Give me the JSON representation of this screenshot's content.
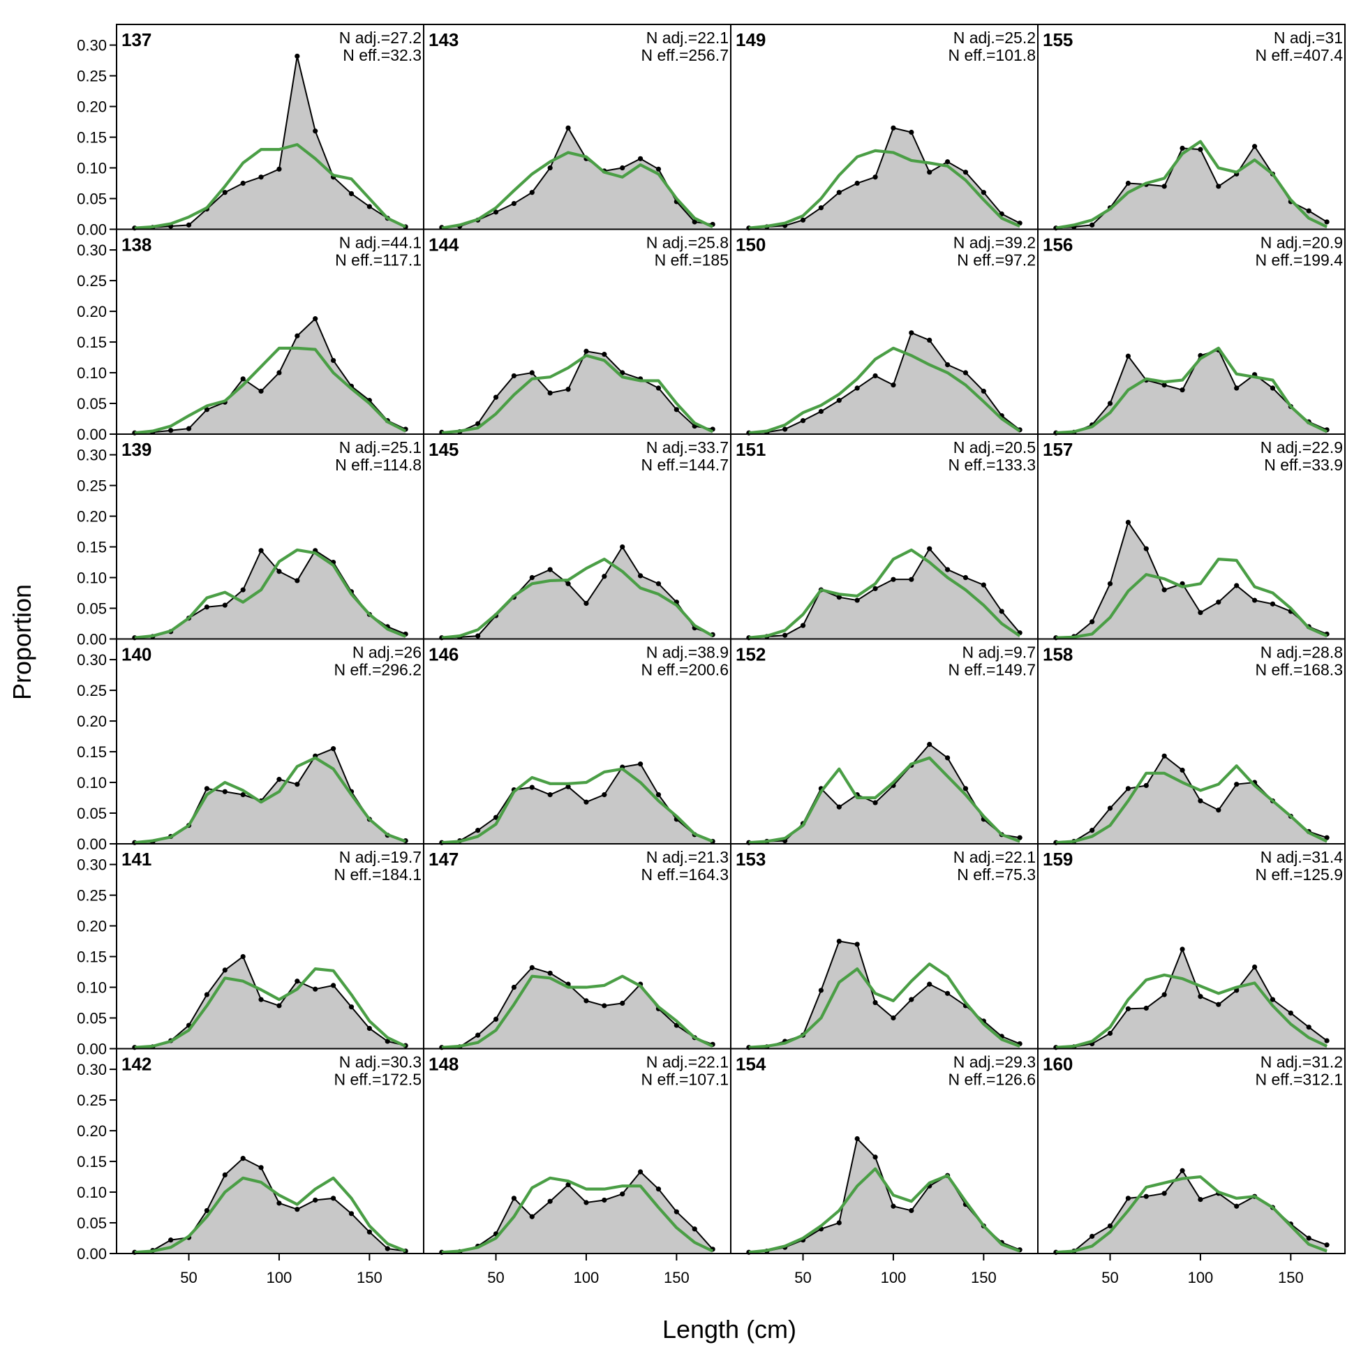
{
  "chart_data": {
    "type": "area",
    "xlabel": "Length (cm)",
    "ylabel": "Proportion",
    "ylim": [
      0,
      0.32
    ],
    "xlim": [
      10,
      180
    ],
    "yticks": [
      "0.00",
      "0.05",
      "0.10",
      "0.15",
      "0.20",
      "0.25",
      "0.30"
    ],
    "xticks": [
      "50",
      "100",
      "150"
    ],
    "x": [
      20,
      30,
      40,
      50,
      60,
      70,
      80,
      90,
      100,
      110,
      120,
      130,
      140,
      150,
      160,
      170
    ],
    "colors": {
      "observed_fill": "#c8c8c8",
      "observed_line": "#000000",
      "expected_line": "#4a9e45"
    },
    "panels": [
      {
        "id": "137",
        "n_adj": "N adj.=27.2",
        "n_eff": "N eff.=32.3",
        "obs": [
          0.002,
          0.003,
          0.005,
          0.007,
          0.033,
          0.06,
          0.075,
          0.085,
          0.098,
          0.282,
          0.16,
          0.085,
          0.058,
          0.037,
          0.018,
          0.004
        ],
        "exp": [
          0.002,
          0.004,
          0.009,
          0.02,
          0.035,
          0.07,
          0.108,
          0.13,
          0.13,
          0.138,
          0.115,
          0.088,
          0.082,
          0.05,
          0.018,
          0.004
        ]
      },
      {
        "id": "138",
        "n_adj": "N adj.=44.1",
        "n_eff": "N eff.=117.1",
        "obs": [
          0.002,
          0.003,
          0.006,
          0.009,
          0.04,
          0.052,
          0.09,
          0.07,
          0.1,
          0.16,
          0.188,
          0.12,
          0.078,
          0.055,
          0.022,
          0.008
        ],
        "exp": [
          0.002,
          0.005,
          0.013,
          0.03,
          0.046,
          0.054,
          0.08,
          0.11,
          0.14,
          0.14,
          0.138,
          0.1,
          0.074,
          0.05,
          0.02,
          0.005
        ]
      },
      {
        "id": "139",
        "n_adj": "N adj.=25.1",
        "n_eff": "N eff.=114.8",
        "obs": [
          0.002,
          0.004,
          0.012,
          0.034,
          0.052,
          0.055,
          0.08,
          0.144,
          0.11,
          0.095,
          0.144,
          0.125,
          0.077,
          0.04,
          0.02,
          0.008
        ],
        "exp": [
          0.002,
          0.005,
          0.013,
          0.034,
          0.067,
          0.076,
          0.06,
          0.08,
          0.126,
          0.145,
          0.14,
          0.12,
          0.073,
          0.04,
          0.016,
          0.004
        ]
      },
      {
        "id": "140",
        "n_adj": "N adj.=26",
        "n_eff": "N eff.=296.2",
        "obs": [
          0.002,
          0.003,
          0.012,
          0.03,
          0.09,
          0.085,
          0.08,
          0.07,
          0.105,
          0.097,
          0.143,
          0.155,
          0.085,
          0.04,
          0.014,
          0.005
        ],
        "exp": [
          0.002,
          0.005,
          0.011,
          0.03,
          0.08,
          0.1,
          0.087,
          0.068,
          0.085,
          0.126,
          0.14,
          0.122,
          0.08,
          0.04,
          0.015,
          0.004
        ]
      },
      {
        "id": "141",
        "n_adj": "N adj.=19.7",
        "n_eff": "N eff.=184.1",
        "obs": [
          0.002,
          0.003,
          0.013,
          0.038,
          0.088,
          0.128,
          0.15,
          0.08,
          0.07,
          0.11,
          0.097,
          0.103,
          0.068,
          0.033,
          0.012,
          0.005
        ],
        "exp": [
          0.002,
          0.004,
          0.012,
          0.03,
          0.07,
          0.115,
          0.11,
          0.096,
          0.08,
          0.097,
          0.13,
          0.127,
          0.088,
          0.045,
          0.018,
          0.004
        ]
      },
      {
        "id": "142",
        "n_adj": "N adj.=30.3",
        "n_eff": "N eff.=172.5",
        "obs": [
          0.002,
          0.005,
          0.022,
          0.026,
          0.07,
          0.128,
          0.155,
          0.14,
          0.082,
          0.072,
          0.087,
          0.09,
          0.065,
          0.035,
          0.008,
          0.004
        ],
        "exp": [
          0.002,
          0.004,
          0.01,
          0.028,
          0.06,
          0.1,
          0.123,
          0.116,
          0.095,
          0.08,
          0.105,
          0.123,
          0.09,
          0.045,
          0.016,
          0.004
        ]
      },
      {
        "id": "143",
        "n_adj": "N adj.=22.1",
        "n_eff": "N eff.=256.7",
        "obs": [
          0.003,
          0.005,
          0.015,
          0.028,
          0.042,
          0.06,
          0.1,
          0.165,
          0.115,
          0.095,
          0.1,
          0.115,
          0.098,
          0.045,
          0.012,
          0.008
        ],
        "exp": [
          0.002,
          0.007,
          0.016,
          0.035,
          0.063,
          0.09,
          0.11,
          0.125,
          0.118,
          0.093,
          0.085,
          0.105,
          0.09,
          0.05,
          0.018,
          0.004
        ]
      },
      {
        "id": "144",
        "n_adj": "N adj.=25.8",
        "n_eff": "N eff.=185",
        "obs": [
          0.003,
          0.004,
          0.017,
          0.06,
          0.095,
          0.1,
          0.067,
          0.073,
          0.135,
          0.13,
          0.1,
          0.09,
          0.075,
          0.04,
          0.013,
          0.008
        ],
        "exp": [
          0.002,
          0.005,
          0.01,
          0.033,
          0.064,
          0.09,
          0.093,
          0.108,
          0.128,
          0.12,
          0.093,
          0.087,
          0.087,
          0.05,
          0.018,
          0.004
        ]
      },
      {
        "id": "145",
        "n_adj": "N adj.=33.7",
        "n_eff": "N eff.=144.7",
        "obs": [
          0.002,
          0.003,
          0.005,
          0.038,
          0.068,
          0.1,
          0.113,
          0.09,
          0.058,
          0.102,
          0.15,
          0.103,
          0.09,
          0.06,
          0.018,
          0.007
        ],
        "exp": [
          0.002,
          0.005,
          0.015,
          0.04,
          0.07,
          0.09,
          0.095,
          0.096,
          0.115,
          0.13,
          0.11,
          0.083,
          0.073,
          0.055,
          0.022,
          0.005
        ]
      },
      {
        "id": "146",
        "n_adj": "N adj.=38.9",
        "n_eff": "N eff.=200.6",
        "obs": [
          0.002,
          0.005,
          0.022,
          0.043,
          0.088,
          0.092,
          0.08,
          0.093,
          0.068,
          0.08,
          0.125,
          0.13,
          0.08,
          0.04,
          0.015,
          0.004
        ],
        "exp": [
          0.002,
          0.004,
          0.012,
          0.032,
          0.085,
          0.108,
          0.098,
          0.098,
          0.1,
          0.117,
          0.122,
          0.1,
          0.07,
          0.045,
          0.016,
          0.004
        ]
      },
      {
        "id": "147",
        "n_adj": "N adj.=21.3",
        "n_eff": "N eff.=164.3",
        "obs": [
          0.002,
          0.003,
          0.022,
          0.048,
          0.1,
          0.132,
          0.123,
          0.105,
          0.078,
          0.07,
          0.074,
          0.105,
          0.065,
          0.038,
          0.018,
          0.007
        ],
        "exp": [
          0.002,
          0.004,
          0.01,
          0.03,
          0.072,
          0.118,
          0.115,
          0.1,
          0.1,
          0.103,
          0.118,
          0.102,
          0.068,
          0.045,
          0.018,
          0.004
        ]
      },
      {
        "id": "148",
        "n_adj": "N adj.=22.1",
        "n_eff": "N eff.=107.1",
        "obs": [
          0.002,
          0.003,
          0.012,
          0.032,
          0.09,
          0.06,
          0.085,
          0.112,
          0.083,
          0.087,
          0.097,
          0.133,
          0.105,
          0.068,
          0.04,
          0.007
        ],
        "exp": [
          0.002,
          0.004,
          0.01,
          0.025,
          0.06,
          0.107,
          0.123,
          0.118,
          0.105,
          0.105,
          0.11,
          0.11,
          0.075,
          0.042,
          0.018,
          0.004
        ]
      },
      {
        "id": "149",
        "n_adj": "N adj.=25.2",
        "n_eff": "N eff.=101.8",
        "obs": [
          0.002,
          0.004,
          0.006,
          0.015,
          0.035,
          0.06,
          0.075,
          0.085,
          0.165,
          0.158,
          0.093,
          0.11,
          0.093,
          0.06,
          0.025,
          0.01
        ],
        "exp": [
          0.002,
          0.005,
          0.01,
          0.022,
          0.05,
          0.088,
          0.118,
          0.128,
          0.125,
          0.112,
          0.108,
          0.103,
          0.08,
          0.048,
          0.018,
          0.005
        ]
      },
      {
        "id": "150",
        "n_adj": "N adj.=39.2",
        "n_eff": "N eff.=97.2",
        "obs": [
          0.002,
          0.003,
          0.008,
          0.022,
          0.037,
          0.055,
          0.075,
          0.095,
          0.08,
          0.165,
          0.153,
          0.113,
          0.1,
          0.07,
          0.03,
          0.007
        ],
        "exp": [
          0.002,
          0.005,
          0.015,
          0.035,
          0.047,
          0.065,
          0.09,
          0.122,
          0.14,
          0.128,
          0.113,
          0.1,
          0.08,
          0.053,
          0.025,
          0.005
        ]
      },
      {
        "id": "151",
        "n_adj": "N adj.=20.5",
        "n_eff": "N eff.=133.3",
        "obs": [
          0.002,
          0.004,
          0.006,
          0.022,
          0.08,
          0.068,
          0.063,
          0.082,
          0.097,
          0.097,
          0.147,
          0.113,
          0.1,
          0.088,
          0.045,
          0.01
        ],
        "exp": [
          0.002,
          0.005,
          0.014,
          0.04,
          0.08,
          0.073,
          0.07,
          0.09,
          0.13,
          0.145,
          0.125,
          0.1,
          0.08,
          0.055,
          0.025,
          0.005
        ]
      },
      {
        "id": "152",
        "n_adj": "N adj.=9.7",
        "n_eff": "N eff.=149.7",
        "obs": [
          0.002,
          0.004,
          0.005,
          0.033,
          0.09,
          0.06,
          0.08,
          0.067,
          0.095,
          0.128,
          0.162,
          0.14,
          0.09,
          0.04,
          0.015,
          0.01
        ],
        "exp": [
          0.002,
          0.004,
          0.009,
          0.03,
          0.085,
          0.122,
          0.075,
          0.075,
          0.1,
          0.13,
          0.14,
          0.11,
          0.08,
          0.045,
          0.015,
          0.004
        ]
      },
      {
        "id": "153",
        "n_adj": "N adj.=22.1",
        "n_eff": "N eff.=75.3",
        "obs": [
          0.002,
          0.003,
          0.012,
          0.022,
          0.095,
          0.175,
          0.17,
          0.075,
          0.05,
          0.08,
          0.105,
          0.09,
          0.07,
          0.045,
          0.02,
          0.008
        ],
        "exp": [
          0.002,
          0.004,
          0.009,
          0.022,
          0.05,
          0.108,
          0.13,
          0.09,
          0.078,
          0.11,
          0.138,
          0.118,
          0.075,
          0.04,
          0.015,
          0.004
        ]
      },
      {
        "id": "154",
        "n_adj": "N adj.=29.3",
        "n_eff": "N eff.=126.6",
        "obs": [
          0.002,
          0.004,
          0.01,
          0.022,
          0.04,
          0.05,
          0.187,
          0.157,
          0.077,
          0.07,
          0.11,
          0.127,
          0.08,
          0.045,
          0.018,
          0.006
        ],
        "exp": [
          0.002,
          0.005,
          0.012,
          0.025,
          0.045,
          0.07,
          0.11,
          0.138,
          0.095,
          0.085,
          0.115,
          0.127,
          0.085,
          0.045,
          0.015,
          0.004
        ]
      },
      {
        "id": "155",
        "n_adj": "N adj.=31",
        "n_eff": "N eff.=407.4",
        "obs": [
          0.002,
          0.004,
          0.007,
          0.035,
          0.075,
          0.073,
          0.07,
          0.132,
          0.13,
          0.07,
          0.09,
          0.135,
          0.09,
          0.045,
          0.03,
          0.012
        ],
        "exp": [
          0.002,
          0.007,
          0.015,
          0.033,
          0.06,
          0.075,
          0.083,
          0.123,
          0.143,
          0.1,
          0.093,
          0.113,
          0.09,
          0.048,
          0.018,
          0.004
        ]
      },
      {
        "id": "156",
        "n_adj": "N adj.=20.9",
        "n_eff": "N eff.=199.4",
        "obs": [
          0.002,
          0.003,
          0.015,
          0.05,
          0.127,
          0.088,
          0.08,
          0.072,
          0.128,
          0.137,
          0.075,
          0.097,
          0.075,
          0.045,
          0.02,
          0.007
        ],
        "exp": [
          0.002,
          0.004,
          0.012,
          0.035,
          0.072,
          0.09,
          0.085,
          0.088,
          0.123,
          0.14,
          0.098,
          0.093,
          0.088,
          0.045,
          0.018,
          0.004
        ]
      },
      {
        "id": "157",
        "n_adj": "N adj.=22.9",
        "n_eff": "N eff.=33.9",
        "obs": [
          0.002,
          0.004,
          0.028,
          0.09,
          0.19,
          0.147,
          0.08,
          0.09,
          0.043,
          0.06,
          0.087,
          0.063,
          0.057,
          0.045,
          0.02,
          0.008
        ],
        "exp": [
          0.002,
          0.003,
          0.008,
          0.035,
          0.078,
          0.105,
          0.098,
          0.085,
          0.09,
          0.13,
          0.128,
          0.085,
          0.075,
          0.05,
          0.018,
          0.005
        ]
      },
      {
        "id": "158",
        "n_adj": "N adj.=28.8",
        "n_eff": "N eff.=168.3",
        "obs": [
          0.002,
          0.004,
          0.022,
          0.058,
          0.09,
          0.095,
          0.143,
          0.12,
          0.07,
          0.055,
          0.097,
          0.1,
          0.07,
          0.045,
          0.02,
          0.01
        ],
        "exp": [
          0.002,
          0.004,
          0.012,
          0.03,
          0.07,
          0.115,
          0.115,
          0.1,
          0.087,
          0.097,
          0.127,
          0.095,
          0.07,
          0.045,
          0.018,
          0.004
        ]
      },
      {
        "id": "159",
        "n_adj": "N adj.=31.4",
        "n_eff": "N eff.=125.9",
        "obs": [
          0.002,
          0.003,
          0.008,
          0.025,
          0.065,
          0.066,
          0.088,
          0.162,
          0.085,
          0.072,
          0.095,
          0.133,
          0.08,
          0.058,
          0.035,
          0.013
        ],
        "exp": [
          0.002,
          0.004,
          0.012,
          0.035,
          0.08,
          0.112,
          0.12,
          0.114,
          0.102,
          0.09,
          0.1,
          0.107,
          0.07,
          0.04,
          0.018,
          0.004
        ]
      },
      {
        "id": "160",
        "n_adj": "N adj.=31.2",
        "n_eff": "N eff.=312.1",
        "obs": [
          0.002,
          0.004,
          0.028,
          0.045,
          0.09,
          0.093,
          0.098,
          0.135,
          0.088,
          0.098,
          0.077,
          0.093,
          0.075,
          0.048,
          0.025,
          0.014
        ],
        "exp": [
          0.002,
          0.004,
          0.012,
          0.035,
          0.07,
          0.108,
          0.115,
          0.122,
          0.125,
          0.1,
          0.09,
          0.093,
          0.075,
          0.045,
          0.015,
          0.004
        ]
      }
    ]
  }
}
